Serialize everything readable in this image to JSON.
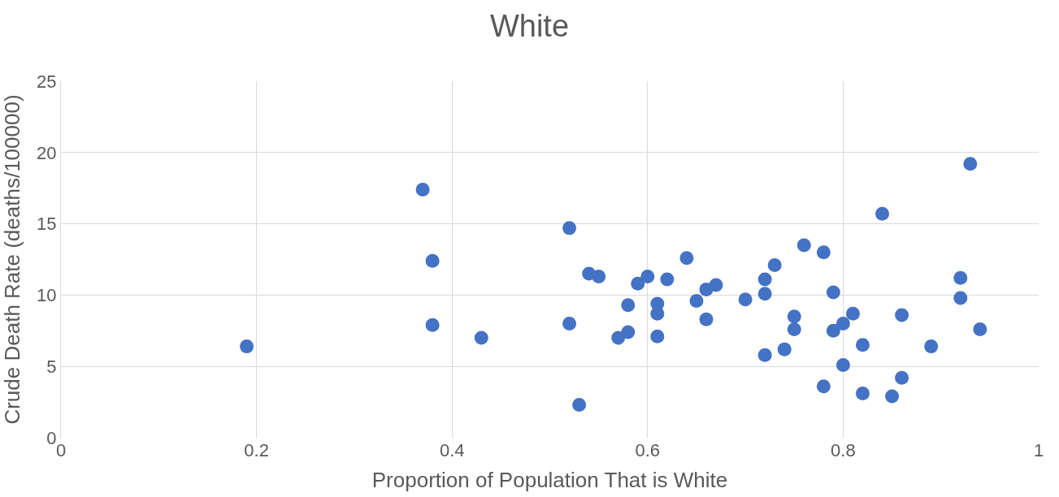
{
  "chart_data": {
    "type": "scatter",
    "title": "White",
    "xlabel": "Proportion of Population That is White",
    "ylabel": "Crude Death Rate (deaths/100000)",
    "x": [
      0.19,
      0.37,
      0.38,
      0.38,
      0.43,
      0.52,
      0.52,
      0.53,
      0.54,
      0.55,
      0.57,
      0.58,
      0.58,
      0.59,
      0.6,
      0.61,
      0.61,
      0.61,
      0.62,
      0.64,
      0.65,
      0.66,
      0.66,
      0.67,
      0.7,
      0.72,
      0.72,
      0.72,
      0.73,
      0.74,
      0.75,
      0.75,
      0.76,
      0.78,
      0.78,
      0.79,
      0.79,
      0.8,
      0.8,
      0.81,
      0.82,
      0.82,
      0.84,
      0.85,
      0.86,
      0.86,
      0.89,
      0.92,
      0.92,
      0.93,
      0.94
    ],
    "values": [
      6.4,
      17.4,
      12.4,
      7.9,
      7.0,
      14.7,
      8.0,
      2.3,
      11.5,
      11.3,
      7.0,
      7.4,
      9.3,
      10.8,
      11.3,
      9.4,
      8.7,
      7.1,
      11.1,
      12.6,
      9.6,
      10.4,
      8.3,
      10.7,
      9.7,
      11.1,
      10.1,
      5.8,
      12.1,
      6.2,
      8.5,
      7.6,
      13.5,
      13.0,
      3.6,
      10.2,
      7.5,
      8.0,
      5.1,
      8.7,
      6.5,
      3.1,
      15.7,
      2.9,
      8.6,
      4.2,
      6.4,
      11.2,
      9.8,
      19.2,
      7.6
    ],
    "color": "#4472c4",
    "marker": "circle",
    "xlim": [
      0,
      1
    ],
    "xticks": [
      0,
      0.2,
      0.4,
      0.6,
      0.8,
      1
    ],
    "ylim": [
      0,
      25
    ],
    "yticks": [
      0,
      5,
      10,
      15,
      20,
      25
    ],
    "grid": true
  }
}
